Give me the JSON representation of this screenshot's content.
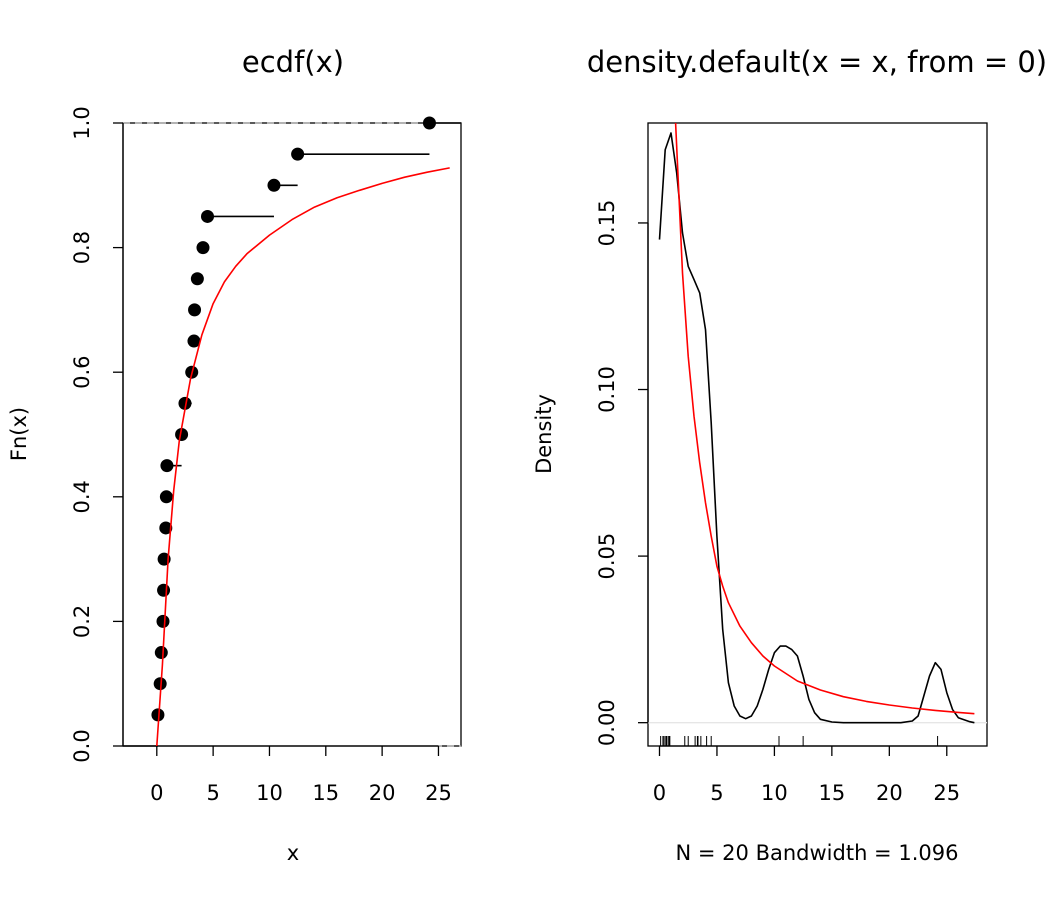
{
  "chart_data": [
    {
      "type": "step",
      "title": "ecdf(x)",
      "xlabel": "x",
      "ylabel": "Fn(x)",
      "xlim": [
        -3,
        27
      ],
      "ylim": [
        0,
        1
      ],
      "xticks": [
        0,
        5,
        10,
        15,
        20,
        25
      ],
      "yticks": [
        0.0,
        0.2,
        0.4,
        0.6,
        0.8,
        1.0
      ],
      "xtick_labels": [
        "0",
        "5",
        "10",
        "15",
        "20",
        "25"
      ],
      "ytick_labels": [
        "0.0",
        "0.2",
        "0.4",
        "0.6",
        "0.8",
        "1.0"
      ],
      "hlines": [
        0,
        1
      ],
      "series": [
        {
          "type": "ecdf",
          "x": [
            0.1,
            0.3,
            0.4,
            0.55,
            0.6,
            0.65,
            0.8,
            0.85,
            0.9,
            2.2,
            2.5,
            3.1,
            3.3,
            3.35,
            3.6,
            4.1,
            4.5,
            10.4,
            12.5,
            24.2
          ],
          "y": [
            0.05,
            0.1,
            0.15,
            0.2,
            0.25,
            0.3,
            0.35,
            0.4,
            0.45,
            0.5,
            0.55,
            0.6,
            0.65,
            0.7,
            0.75,
            0.8,
            0.85,
            0.9,
            0.95,
            1.0
          ],
          "color": "#000000"
        },
        {
          "type": "line",
          "x": [
            0,
            0.5,
            1,
            1.5,
            2,
            3,
            4,
            5,
            6,
            7,
            8,
            10,
            12,
            14,
            16,
            18,
            20,
            22,
            24,
            26
          ],
          "y": [
            0.0,
            0.13,
            0.3,
            0.41,
            0.49,
            0.59,
            0.66,
            0.71,
            0.745,
            0.77,
            0.79,
            0.82,
            0.845,
            0.865,
            0.88,
            0.892,
            0.903,
            0.913,
            0.921,
            0.928
          ],
          "color": "#ff0000"
        }
      ]
    },
    {
      "type": "line",
      "title": "density.default(x = x, from = 0)",
      "xlabel": "N = 20   Bandwidth = 1.096",
      "ylabel": "Density",
      "xlim": [
        -1,
        28.5
      ],
      "ylim": [
        -0.007,
        0.18
      ],
      "xticks": [
        0,
        5,
        10,
        15,
        20,
        25
      ],
      "yticks": [
        0.0,
        0.05,
        0.1,
        0.15
      ],
      "xtick_labels": [
        "0",
        "5",
        "10",
        "15",
        "20",
        "25"
      ],
      "ytick_labels": [
        "0.00",
        "0.05",
        "0.10",
        "0.15"
      ],
      "hlines": [
        0
      ],
      "series": [
        {
          "name": "",
          "x": [
            0,
            0.5,
            1,
            1.5,
            2,
            2.5,
            3,
            3.5,
            4,
            4.5,
            5,
            5.5,
            6,
            6.5,
            7,
            7.5,
            8,
            8.5,
            9,
            9.5,
            10,
            10.5,
            11,
            11.5,
            12,
            12.5,
            13,
            13.5,
            14,
            15,
            16,
            18,
            20,
            21,
            22,
            22.5,
            23,
            23.5,
            24,
            24.5,
            25,
            25.5,
            26,
            27,
            27.4
          ],
          "y": [
            0.145,
            0.172,
            0.177,
            0.165,
            0.147,
            0.137,
            0.133,
            0.129,
            0.118,
            0.09,
            0.056,
            0.028,
            0.012,
            0.005,
            0.002,
            0.0012,
            0.002,
            0.005,
            0.01,
            0.016,
            0.021,
            0.023,
            0.023,
            0.022,
            0.02,
            0.014,
            0.007,
            0.003,
            0.001,
            0.0002,
            0.0,
            0.0,
            0.0,
            0.0,
            0.0005,
            0.002,
            0.008,
            0.014,
            0.018,
            0.016,
            0.009,
            0.004,
            0.0015,
            0.0003,
            0.0
          ],
          "color": "#000000"
        },
        {
          "name": "",
          "x": [
            1.4,
            1.6,
            2,
            2.5,
            3,
            3.5,
            4,
            4.5,
            5,
            5.5,
            6,
            7,
            8,
            9,
            10,
            12,
            14,
            16,
            18,
            20,
            22,
            24,
            26,
            27.4
          ],
          "y": [
            0.18,
            0.165,
            0.135,
            0.11,
            0.092,
            0.078,
            0.066,
            0.056,
            0.047,
            0.041,
            0.036,
            0.029,
            0.024,
            0.02,
            0.017,
            0.0125,
            0.0098,
            0.0078,
            0.0064,
            0.0053,
            0.0044,
            0.0037,
            0.0031,
            0.0027
          ],
          "color": "#ff0000"
        }
      ],
      "rug": [
        0.1,
        0.3,
        0.4,
        0.55,
        0.6,
        0.65,
        0.8,
        0.85,
        0.9,
        2.2,
        2.5,
        3.1,
        3.3,
        3.35,
        3.6,
        4.1,
        4.5,
        10.4,
        12.5,
        24.2
      ]
    }
  ]
}
